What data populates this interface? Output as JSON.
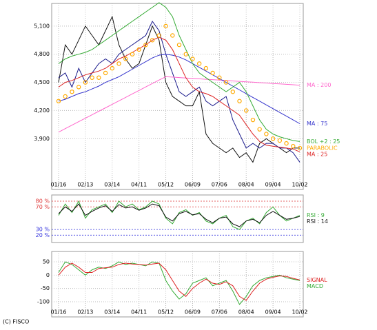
{
  "footer": "(C) FISCO",
  "chart_data": [
    {
      "type": "line",
      "categories": [
        "01/16",
        null,
        null,
        null,
        "02/13",
        null,
        null,
        null,
        "03/14",
        null,
        null,
        null,
        "04/11",
        null,
        null,
        null,
        "05/12",
        null,
        null,
        null,
        "06/09",
        null,
        null,
        null,
        "07/06",
        null,
        null,
        null,
        "08/04",
        null,
        null,
        null,
        "09/04",
        null,
        null,
        null,
        "10/02"
      ],
      "ylim": [
        3359,
        5341
      ],
      "yticks": [
        {
          "value": 3900,
          "label": "3,900"
        },
        {
          "value": 4200,
          "label": "4,200"
        },
        {
          "value": 4500,
          "label": "4,500"
        },
        {
          "value": 4800,
          "label": "4,800"
        },
        {
          "value": 5100,
          "label": "5,100"
        }
      ],
      "grid": true,
      "series": [
        {
          "color": "#111111",
          "values": [
            4500,
            4900,
            4800,
            4950,
            5100,
            5000,
            4900,
            5050,
            5200,
            4900,
            4750,
            4650,
            4700,
            4900,
            5100,
            4950,
            4500,
            4350,
            4300,
            4250,
            4250,
            4400,
            3950,
            3850,
            3800,
            3750,
            3800,
            3700,
            3750,
            3650,
            3850,
            3900,
            3850,
            3800,
            3750,
            3800,
            3800
          ]
        },
        {
          "color": "#1a1a8c",
          "values": [
            4550,
            4600,
            4450,
            4650,
            4500,
            4600,
            4700,
            4750,
            4700,
            4800,
            4850,
            4900,
            4950,
            5000,
            5150,
            5050,
            4800,
            4600,
            4400,
            4350,
            4400,
            4450,
            4300,
            4250,
            4300,
            4350,
            4100,
            3950,
            3800,
            3850,
            3800,
            3850,
            3850,
            3800,
            3800,
            3750,
            3650
          ]
        },
        {
          "name": "MA : 200",
          "color": "#ff66cc",
          "values": [
            3970,
            4007,
            4044,
            4081,
            4118,
            4155,
            4192,
            4229,
            4266,
            4303,
            4340,
            4377,
            4414,
            4451,
            4488,
            4525,
            4560,
            4556,
            4551,
            4547,
            4542,
            4538,
            4533,
            4529,
            4524,
            4520,
            4515,
            4511,
            4506,
            4502,
            4497,
            4493,
            4488,
            4484,
            4479,
            4475,
            4470
          ]
        },
        {
          "name": "MA : 75",
          "color": "#3333cc",
          "values": [
            4300,
            4320,
            4350,
            4380,
            4400,
            4430,
            4460,
            4500,
            4530,
            4560,
            4600,
            4640,
            4680,
            4720,
            4760,
            4790,
            4800,
            4790,
            4770,
            4740,
            4700,
            4660,
            4620,
            4580,
            4540,
            4500,
            4460,
            4420,
            4380,
            4340,
            4300,
            4260,
            4220,
            4180,
            4140,
            4100,
            4060
          ]
        },
        {
          "name": "BOL +2 : 25",
          "color": "#33aa33",
          "values": [
            4700,
            4750,
            4780,
            4800,
            4820,
            4850,
            4900,
            4950,
            5000,
            5050,
            5100,
            5150,
            5200,
            5250,
            5300,
            5350,
            5300,
            5200,
            5000,
            4850,
            4700,
            4600,
            4550,
            4500,
            4450,
            4400,
            4450,
            4500,
            4400,
            4250,
            4100,
            4000,
            3950,
            3920,
            3900,
            3880,
            3870
          ]
        },
        {
          "name": "MA : 25",
          "color": "#dd2222",
          "values": [
            4450,
            4500,
            4520,
            4550,
            4580,
            4600,
            4620,
            4650,
            4700,
            4750,
            4780,
            4820,
            4860,
            4900,
            4950,
            4980,
            4950,
            4850,
            4700,
            4550,
            4450,
            4400,
            4380,
            4350,
            4300,
            4250,
            4200,
            4150,
            4050,
            3950,
            3870,
            3830,
            3820,
            3810,
            3800,
            3790,
            3760
          ]
        },
        {
          "name": "PARABOLIC",
          "color": "#ffaa00",
          "marker": "dots",
          "values": [
            4300,
            4350,
            4400,
            4450,
            4500,
            4550,
            4550,
            4600,
            4650,
            4700,
            4750,
            4800,
            4850,
            4900,
            4950,
            5000,
            5100,
            5000,
            4900,
            4800,
            4750,
            4700,
            4650,
            4600,
            4550,
            4500,
            4400,
            4300,
            4200,
            4100,
            4000,
            3950,
            3900,
            3880,
            3850,
            3820,
            3800
          ]
        }
      ]
    },
    {
      "type": "line",
      "ylim": [
        7,
        91
      ],
      "yticks": [
        {
          "value": 20,
          "label": "20 %"
        },
        {
          "value": 30,
          "label": "30 %"
        },
        {
          "value": 70,
          "label": "70 %"
        },
        {
          "value": 80,
          "label": "80 %"
        }
      ],
      "ytick_colors": [
        "#3333dd",
        "#3333dd",
        "#dd3333",
        "#dd3333"
      ],
      "series": [
        {
          "name": "RSI : 9",
          "color": "#33aa33",
          "values": [
            55,
            75,
            60,
            80,
            50,
            65,
            70,
            75,
            60,
            80,
            70,
            75,
            65,
            70,
            80,
            75,
            50,
            40,
            60,
            65,
            55,
            60,
            45,
            40,
            50,
            55,
            35,
            30,
            45,
            50,
            40,
            60,
            70,
            55,
            45,
            50,
            55
          ]
        },
        {
          "name": "RSI : 14",
          "color": "#111111",
          "values": [
            58,
            70,
            62,
            75,
            55,
            62,
            68,
            72,
            62,
            74,
            68,
            70,
            64,
            68,
            75,
            72,
            52,
            45,
            58,
            62,
            56,
            58,
            48,
            42,
            50,
            52,
            40,
            35,
            45,
            48,
            42,
            55,
            62,
            55,
            48,
            50,
            53
          ]
        }
      ]
    },
    {
      "type": "line",
      "categories": [
        "01/16",
        null,
        null,
        null,
        "02/13",
        null,
        null,
        null,
        "03/14",
        null,
        null,
        null,
        "04/11",
        null,
        null,
        null,
        "05/12",
        null,
        null,
        null,
        "06/09",
        null,
        null,
        null,
        "07/06",
        null,
        null,
        null,
        "08/04",
        null,
        null,
        null,
        "09/04",
        null,
        null,
        null,
        "10/02"
      ],
      "ylim": [
        -157,
        89
      ],
      "yticks": [
        -100,
        -50,
        0,
        50
      ],
      "grid": true,
      "series": [
        {
          "name": "MACD",
          "color": "#33aa33",
          "values": [
            10,
            50,
            40,
            20,
            0,
            20,
            30,
            25,
            35,
            50,
            40,
            45,
            40,
            35,
            50,
            45,
            -20,
            -60,
            -90,
            -70,
            -30,
            -20,
            -10,
            -40,
            -30,
            -20,
            -60,
            -110,
            -80,
            -40,
            -20,
            -10,
            -5,
            0,
            -10,
            -15,
            -20
          ]
        },
        {
          "name": "SIGNAL",
          "color": "#dd2222",
          "values": [
            0,
            30,
            45,
            30,
            10,
            10,
            25,
            28,
            30,
            40,
            45,
            42,
            40,
            38,
            42,
            45,
            20,
            -20,
            -60,
            -80,
            -50,
            -30,
            -15,
            -30,
            -35,
            -25,
            -40,
            -80,
            -95,
            -60,
            -30,
            -15,
            -8,
            -3,
            -5,
            -12,
            -18
          ]
        }
      ]
    }
  ]
}
